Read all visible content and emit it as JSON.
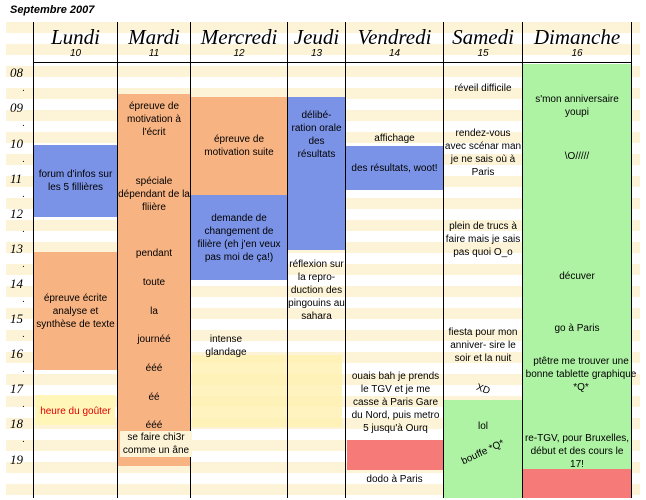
{
  "month_label": "Septembre 2007",
  "days": [
    {
      "name": "Lundi",
      "num": "10"
    },
    {
      "name": "Mardi",
      "num": "11"
    },
    {
      "name": "Mercredi",
      "num": "12"
    },
    {
      "name": "Jeudi",
      "num": "13"
    },
    {
      "name": "Vendredi",
      "num": "14"
    },
    {
      "name": "Samedi",
      "num": "15"
    },
    {
      "name": "Dimanche",
      "num": "16"
    }
  ],
  "hours": [
    "08",
    "09",
    "10",
    "11",
    "12",
    "13",
    "14",
    "15",
    "16",
    "17",
    "18",
    "19"
  ],
  "hour_dot": ".",
  "colors": {
    "blue": "#7b93e6",
    "orange": "#f7b382",
    "green": "#aef2a4",
    "red": "#f67a78",
    "yellow": "#fff7c0",
    "highlight": "#fde7a0"
  },
  "events": {
    "lundi_forum": "forum d'infos sur les 5 fillières",
    "lundi_epreuve": "épreuve écrite analyse et synthèse de texte",
    "lundi_gouter": "heure du goûter",
    "mardi_motivation": "épreuve de motivation à l'écrit",
    "mardi_speciale": "spéciale dépendant de la fliière",
    "mardi_pendant": "pendant",
    "mardi_toute": "toute",
    "mardi_la": "la",
    "mardi_journee": "journéé",
    "mardi_eee1": "ééé",
    "mardi_ee": "éé",
    "mardi_eee2": "ééé",
    "mardi_sefaire": "se faire chi3r comme un âne",
    "mercredi_motivation": "épreuve de motivation suite",
    "mercredi_demande": "demande de changement de filière (eh j'en veux pas moi de ça!)",
    "mercredi_glandage": "intense glandage",
    "jeudi_deliberation": "délibé- ration orale des résultats",
    "jeudi_reflexion": "réflexion sur la repro- duction des pingouins au sahara",
    "vendredi_affichage": "affichage",
    "vendredi_resultats": "des résultats, woot!",
    "vendredi_tgv": "ouais bah je prends le TGV et je me casse à Paris Gare du Nord, puis metro 5 jusqu'à Ourq",
    "vendredi_dodo": "dodo à Paris",
    "samedi_reveil": "réveil difficile",
    "samedi_rdv": "rendez-vous avec scénar man je ne sais où à Paris",
    "samedi_trucs": "plein de trucs à faire mais je sais pas quoi O_o",
    "samedi_fiesta": "fiesta pour mon anniver- sire le soir et la nuit",
    "samedi_xd": "XD",
    "samedi_lol": "lol",
    "samedi_bouffe": "bouffe *Q*",
    "dimanche_anniv": "s'mon anniversaire youpi",
    "dimanche_o": "\\O/////",
    "dimanche_decuver": "décuver",
    "dimanche_paris": "go à Paris",
    "dimanche_tablette": "ptêtre me trouver une bonne tablette graphique *Q*",
    "dimanche_retgv": "re-TGV, pour Bruxelles, début et des cours le 17!"
  }
}
